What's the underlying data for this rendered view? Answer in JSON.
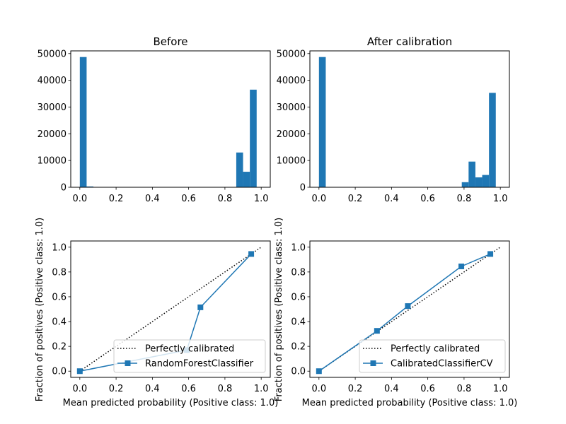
{
  "colors": {
    "bar": "#1f77b4",
    "line": "#1f77b4",
    "diagonal": "#000000",
    "axes": "#000000",
    "background": "#ffffff"
  },
  "chart_data": [
    {
      "type": "bar",
      "title": "Before",
      "xlabel": "",
      "ylabel": "",
      "xlim": [
        -0.05,
        1.05
      ],
      "ylim": [
        0,
        51000
      ],
      "xticks": [
        0.0,
        0.2,
        0.4,
        0.6,
        0.8,
        1.0
      ],
      "xtick_labels": [
        "0.0",
        "0.2",
        "0.4",
        "0.6",
        "0.8",
        "1.0"
      ],
      "yticks": [
        0,
        10000,
        20000,
        30000,
        40000,
        50000
      ],
      "ytick_labels": [
        "0",
        "10000",
        "20000",
        "30000",
        "40000",
        "50000"
      ],
      "bin_edges": [
        0.0,
        0.0375,
        0.075,
        0.1125,
        0.15,
        0.1875,
        0.225,
        0.2625,
        0.3,
        0.3375,
        0.375,
        0.4125,
        0.45,
        0.4875,
        0.525,
        0.5625,
        0.6,
        0.6375,
        0.675,
        0.7125,
        0.75,
        0.7875,
        0.825,
        0.8625,
        0.9,
        0.9375,
        0.975
      ],
      "values": [
        48700,
        300,
        0,
        0,
        0,
        0,
        0,
        0,
        0,
        0,
        0,
        0,
        0,
        0,
        0,
        100,
        100,
        100,
        100,
        100,
        100,
        100,
        100,
        13000,
        5800,
        36500
      ]
    },
    {
      "type": "bar",
      "title": "After calibration",
      "xlabel": "",
      "ylabel": "",
      "xlim": [
        -0.05,
        1.05
      ],
      "ylim": [
        0,
        51000
      ],
      "xticks": [
        0.0,
        0.2,
        0.4,
        0.6,
        0.8,
        1.0
      ],
      "xtick_labels": [
        "0.0",
        "0.2",
        "0.4",
        "0.6",
        "0.8",
        "1.0"
      ],
      "yticks": [
        0,
        10000,
        20000,
        30000,
        40000,
        50000
      ],
      "ytick_labels": [
        "0",
        "10000",
        "20000",
        "30000",
        "40000",
        "50000"
      ],
      "bin_edges": [
        0.0,
        0.0375,
        0.075,
        0.1125,
        0.15,
        0.1875,
        0.225,
        0.2625,
        0.3,
        0.3375,
        0.375,
        0.4125,
        0.45,
        0.4875,
        0.525,
        0.5625,
        0.6,
        0.6375,
        0.675,
        0.7125,
        0.75,
        0.7875,
        0.825,
        0.8625,
        0.9,
        0.9375,
        0.975
      ],
      "values": [
        48700,
        100,
        100,
        100,
        100,
        100,
        100,
        100,
        100,
        100,
        100,
        100,
        100,
        100,
        100,
        100,
        0,
        100,
        100,
        100,
        100,
        1900,
        9600,
        3700,
        4600,
        35300
      ]
    },
    {
      "type": "line",
      "title": "",
      "xlabel": "Mean predicted probability (Positive class: 1.0)",
      "ylabel": "Fraction of positives (Positive class: 1.0)",
      "xlim": [
        -0.05,
        1.05
      ],
      "ylim": [
        -0.05,
        1.05
      ],
      "xticks": [
        0.0,
        0.2,
        0.4,
        0.6,
        0.8,
        1.0
      ],
      "xtick_labels": [
        "0.0",
        "0.2",
        "0.4",
        "0.6",
        "0.8",
        "1.0"
      ],
      "yticks": [
        0.0,
        0.2,
        0.4,
        0.6,
        0.8,
        1.0
      ],
      "ytick_labels": [
        "0.0",
        "0.2",
        "0.4",
        "0.6",
        "0.8",
        "1.0"
      ],
      "legend_position": "lower-right",
      "reference_line": {
        "name": "Perfectly calibrated",
        "x": [
          0,
          1
        ],
        "y": [
          0,
          1
        ]
      },
      "series": [
        {
          "name": "RandomForestClassifier",
          "x": [
            0.0,
            0.59,
            0.665,
            0.945
          ],
          "y": [
            0.0,
            0.17,
            0.515,
            0.945
          ]
        }
      ]
    },
    {
      "type": "line",
      "title": "",
      "xlabel": "Mean predicted probability (Positive class: 1.0)",
      "ylabel": "Fraction of positives (Positive class: 1.0)",
      "xlim": [
        -0.05,
        1.05
      ],
      "ylim": [
        -0.05,
        1.05
      ],
      "xticks": [
        0.0,
        0.2,
        0.4,
        0.6,
        0.8,
        1.0
      ],
      "xtick_labels": [
        "0.0",
        "0.2",
        "0.4",
        "0.6",
        "0.8",
        "1.0"
      ],
      "yticks": [
        0.0,
        0.2,
        0.4,
        0.6,
        0.8,
        1.0
      ],
      "ytick_labels": [
        "0.0",
        "0.2",
        "0.4",
        "0.6",
        "0.8",
        "1.0"
      ],
      "legend_position": "lower-right",
      "reference_line": {
        "name": "Perfectly calibrated",
        "x": [
          0,
          1
        ],
        "y": [
          0,
          1
        ]
      },
      "series": [
        {
          "name": "CalibratedClassifierCV",
          "x": [
            0.0,
            0.32,
            0.49,
            0.785,
            0.945
          ],
          "y": [
            0.0,
            0.325,
            0.525,
            0.845,
            0.945
          ]
        }
      ]
    }
  ]
}
